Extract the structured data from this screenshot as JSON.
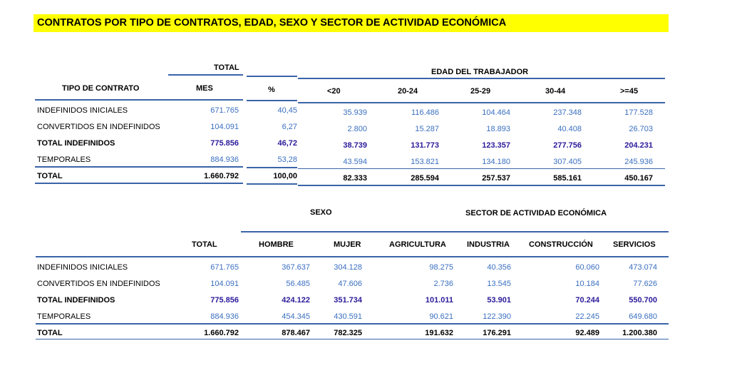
{
  "title": "CONTRATOS POR TIPO DE CONTRATOS, EDAD, SEXO Y SECTOR DE ACTIVIDAD ECONÓMICA",
  "colors": {
    "highlight": "#ffff00",
    "value": "#3a6fc0",
    "subtotal": "#2b1a9a",
    "rule": "#3a64a8"
  },
  "table1": {
    "total_group": "TOTAL",
    "age_group": "EDAD DEL TRABAJADOR",
    "headers": [
      "TIPO DE CONTRATO",
      "MES",
      "%",
      "<20",
      "20-24",
      "25-29",
      "30-44",
      ">=45"
    ],
    "rows": [
      {
        "label": "INDEFINIDOS INICIALES",
        "values": [
          "671.765",
          "40,45",
          "35.939",
          "116.486",
          "104.464",
          "237.348",
          "177.528"
        ]
      },
      {
        "label": "CONVERTIDOS EN INDEFINIDOS",
        "values": [
          "104.091",
          "6,27",
          "2.800",
          "15.287",
          "18.893",
          "40.408",
          "26.703"
        ]
      },
      {
        "label": "TOTAL INDEFINIDOS",
        "values": [
          "775.856",
          "46,72",
          "38.739",
          "131.773",
          "123.357",
          "277.756",
          "204.231"
        ]
      },
      {
        "label": "TEMPORALES",
        "values": [
          "884.936",
          "53,28",
          "43.594",
          "153.821",
          "134.180",
          "307.405",
          "245.936"
        ]
      },
      {
        "label": "TOTAL",
        "values": [
          "1.660.792",
          "100,00",
          "82.333",
          "285.594",
          "257.537",
          "585.161",
          "450.167"
        ]
      }
    ]
  },
  "table2": {
    "sex_group": "SEXO",
    "sector_group": "SECTOR DE ACTIVIDAD ECONÓMICA",
    "headers": [
      "TOTAL",
      "HOMBRE",
      "MUJER",
      "AGRICULTURA",
      "INDUSTRIA",
      "CONSTRUCCIÓN",
      "SERVICIOS"
    ],
    "rows": [
      {
        "label": "INDEFINIDOS INICIALES",
        "values": [
          "671.765",
          "367.637",
          "304.128",
          "98.275",
          "40.356",
          "60.060",
          "473.074"
        ]
      },
      {
        "label": "CONVERTIDOS EN INDEFINIDOS",
        "values": [
          "104.091",
          "56.485",
          "47.606",
          "2.736",
          "13.545",
          "10.184",
          "77.626"
        ]
      },
      {
        "label": "TOTAL INDEFINIDOS",
        "values": [
          "775.856",
          "424.122",
          "351.734",
          "101.011",
          "53.901",
          "70.244",
          "550.700"
        ]
      },
      {
        "label": "TEMPORALES",
        "values": [
          "884.936",
          "454.345",
          "430.591",
          "90.621",
          "122.390",
          "22.245",
          "649.680"
        ]
      },
      {
        "label": "TOTAL",
        "values": [
          "1.660.792",
          "878.467",
          "782.325",
          "191.632",
          "176.291",
          "92.489",
          "1.200.380"
        ]
      }
    ]
  }
}
